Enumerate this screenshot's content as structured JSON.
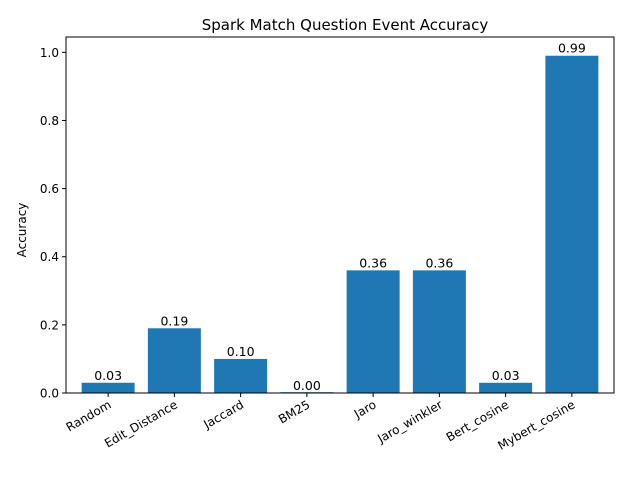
{
  "chart_data": {
    "type": "bar",
    "title": "Spark Match Question Event Accuracy",
    "xlabel": "",
    "ylabel": "Accuracy",
    "categories": [
      "Random",
      "Edit_Distance",
      "Jaccard",
      "BM25",
      "Jaro",
      "Jaro_winkler",
      "Bert_cosine",
      "Mybert_cosine"
    ],
    "values": [
      0.03,
      0.19,
      0.1,
      0.0,
      0.36,
      0.36,
      0.03,
      0.99
    ],
    "data_labels": [
      "0.03",
      "0.19",
      "0.10",
      "0.00",
      "0.36",
      "0.36",
      "0.03",
      "0.99"
    ],
    "ylim": [
      0,
      1.045
    ],
    "yticks": [
      0.0,
      0.2,
      0.4,
      0.6,
      0.8,
      1.0
    ],
    "ytick_labels": [
      "0.0",
      "0.2",
      "0.4",
      "0.6",
      "0.8",
      "1.0"
    ],
    "xtick_rotation_deg": 30,
    "grid": false,
    "legend": "none",
    "colors": {
      "bar": "#1f77b4",
      "axis": "#000000",
      "background": "#ffffff"
    }
  }
}
